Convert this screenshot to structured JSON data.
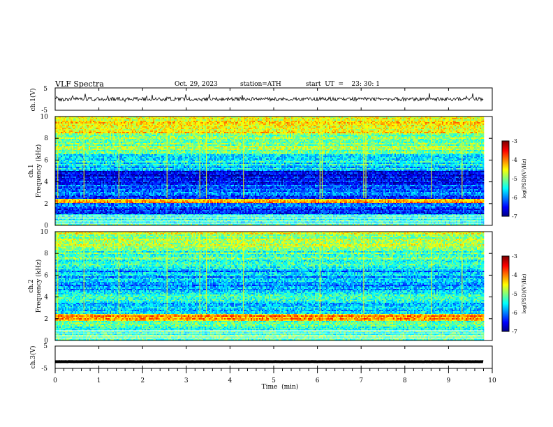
{
  "header": {
    "title": "VLF  Spectra",
    "date": "Oct. 29, 2023",
    "station": "station=ATH",
    "start": "start  UT  =    23: 30: 1"
  },
  "chart_data": [
    {
      "type": "line",
      "id": "ch1-waveform",
      "ylabel": "ch.1(V)",
      "ylim": [
        -5,
        5
      ],
      "yticks": [
        5,
        -5
      ],
      "xlim": [
        0,
        10
      ],
      "baseline": 0,
      "trace_color": "#000000"
    },
    {
      "type": "heatmap",
      "id": "ch1-spectrogram",
      "ylabel": "ch.1\nFrequency  (kHz)",
      "ylabel_lines": [
        "ch.1",
        "Frequency  (kHz)"
      ],
      "ylim": [
        0,
        10
      ],
      "yticks": [
        0,
        2,
        4,
        6,
        8,
        10
      ],
      "xlim": [
        0,
        9.8
      ],
      "colorbar": {
        "label": "log(PSD)(V²/Hz)",
        "range": [
          -7,
          -3
        ],
        "ticks": [
          -3,
          -4,
          -5,
          -6,
          -7
        ]
      },
      "bands_khz": [
        {
          "from": 8.5,
          "to": 10,
          "level": -4.5
        },
        {
          "from": 6.5,
          "to": 8.5,
          "level": -5.0
        },
        {
          "from": 5.0,
          "to": 6.5,
          "level": -5.6
        },
        {
          "from": 3.7,
          "to": 5.0,
          "level": -6.5
        },
        {
          "from": 2.5,
          "to": 3.7,
          "level": -6.1
        },
        {
          "from": 2.0,
          "to": 2.5,
          "level": -4.2
        },
        {
          "from": 1.0,
          "to": 2.0,
          "level": -6.2
        },
        {
          "from": 0.0,
          "to": 1.0,
          "level": -5.4
        }
      ],
      "spikes_min": [
        0.05,
        0.65,
        1.45,
        2.55,
        3.3,
        3.45,
        4.3,
        6.05,
        6.1,
        7.05,
        7.1,
        8.6,
        9.3
      ]
    },
    {
      "type": "heatmap",
      "id": "ch2-spectrogram",
      "ylabel": "ch.2\nFrequency  (kHz)",
      "ylabel_lines": [
        "ch.2",
        "Frequency  (kHz)"
      ],
      "ylim": [
        0,
        10
      ],
      "yticks": [
        0,
        2,
        4,
        6,
        8,
        10
      ],
      "xlim": [
        0,
        9.8
      ],
      "colorbar": {
        "label": "log(PSD)(V²/Hz)",
        "range": [
          -7,
          -3
        ],
        "ticks": [
          -3,
          -4,
          -5,
          -6,
          -7
        ]
      },
      "bands_khz": [
        {
          "from": 8.5,
          "to": 10,
          "level": -4.8
        },
        {
          "from": 6.5,
          "to": 8.5,
          "level": -5.2
        },
        {
          "from": 4.5,
          "to": 6.5,
          "level": -5.8
        },
        {
          "from": 3.5,
          "to": 4.5,
          "level": -5.3
        },
        {
          "from": 2.5,
          "to": 3.5,
          "level": -5.6
        },
        {
          "from": 1.8,
          "to": 2.5,
          "level": -4.1
        },
        {
          "from": 0.0,
          "to": 1.8,
          "level": -5.3
        }
      ],
      "spikes_min": [
        0.05,
        0.65,
        1.45,
        2.55,
        3.3,
        3.45,
        4.3,
        6.05,
        7.05,
        8.6,
        9.3
      ]
    },
    {
      "type": "line",
      "id": "ch3-waveform",
      "ylabel": "ch.3(V)",
      "ylim": [
        -5,
        5
      ],
      "yticks": [
        5,
        -5
      ],
      "xlim": [
        0,
        10
      ],
      "baseline": -2,
      "trace_color": "#000000"
    }
  ],
  "xaxis": {
    "label": "Time  (min)",
    "ticks": [
      0,
      1,
      2,
      3,
      4,
      5,
      6,
      7,
      8,
      9,
      10
    ],
    "xlim": [
      0,
      10
    ]
  }
}
